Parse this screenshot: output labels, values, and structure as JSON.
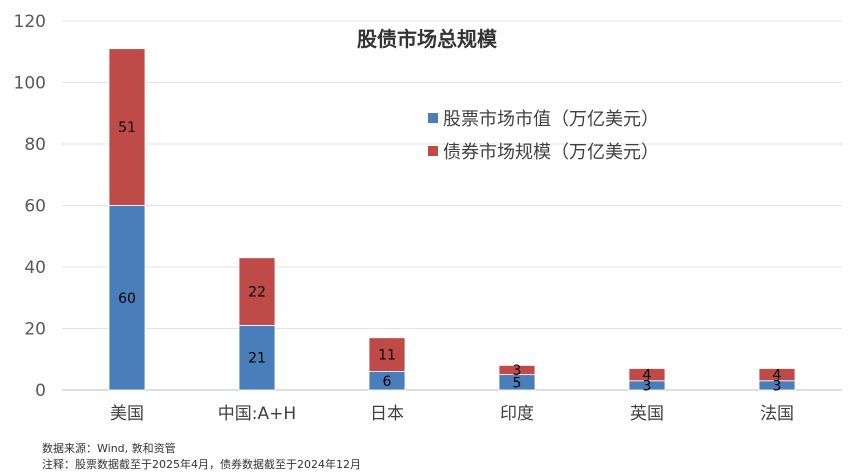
{
  "chart_data": {
    "type": "bar",
    "stacked": true,
    "title": "股债市场总规模",
    "categories": [
      "美国",
      "中国:A+H",
      "日本",
      "印度",
      "英国",
      "法国"
    ],
    "series": [
      {
        "name": "股票市场市值（万亿美元）",
        "color": "#4a7ebb",
        "values": [
          60,
          21,
          6,
          5,
          3,
          3
        ]
      },
      {
        "name": "债券市场规模（万亿美元）",
        "color": "#be4b48",
        "values": [
          51,
          22,
          11,
          3,
          4,
          4
        ]
      }
    ],
    "ylim": [
      0,
      120
    ],
    "yticks": [
      0,
      20,
      40,
      60,
      80,
      100,
      120
    ],
    "grid": true,
    "legend_position": "top-right"
  },
  "footnotes": {
    "source": "数据来源：Wind, 敦和资管",
    "note": "注释：股票数据截至于2025年4月，债券数据截至于2024年12月"
  }
}
